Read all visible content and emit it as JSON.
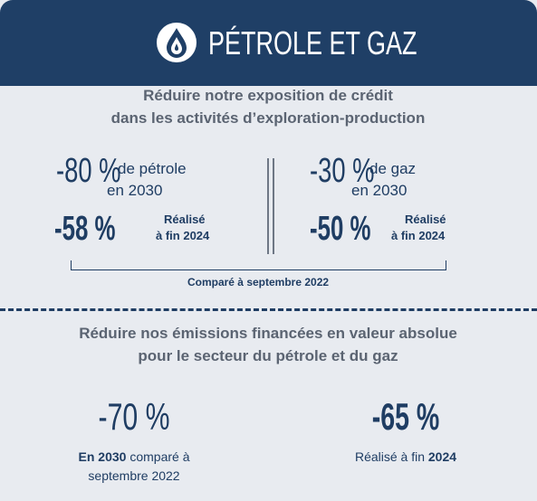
{
  "header": {
    "title": "PÉTROLE ET GAZ"
  },
  "section1": {
    "heading": [
      "Réduire notre exposition de crédit",
      "dans les activités d’exploration-production"
    ],
    "left": {
      "target": "-80 %",
      "target_label": "de pétrole",
      "target_year": "en 2030",
      "achieved": "-58 %",
      "achieved_label": [
        "Réalisé",
        "à fin 2024"
      ]
    },
    "right": {
      "target": "-30 %",
      "target_label": "de gaz",
      "target_year": "en 2030",
      "achieved": "-50 %",
      "achieved_label": [
        "Réalisé",
        "à fin 2024"
      ]
    },
    "note": "Comparé à septembre 2022"
  },
  "section2": {
    "heading": [
      "Réduire nos émissions financées en valeur absolue",
      "pour le secteur du pétrole et du gaz"
    ],
    "left": {
      "value": "-70 %",
      "caption_bold": "En 2030",
      "caption_rest": " comparé à",
      "caption_line2": "septembre 2022"
    },
    "right": {
      "value": "-65 %",
      "caption_rest": "Réalisé à fin ",
      "caption_bold": "2024"
    }
  }
}
